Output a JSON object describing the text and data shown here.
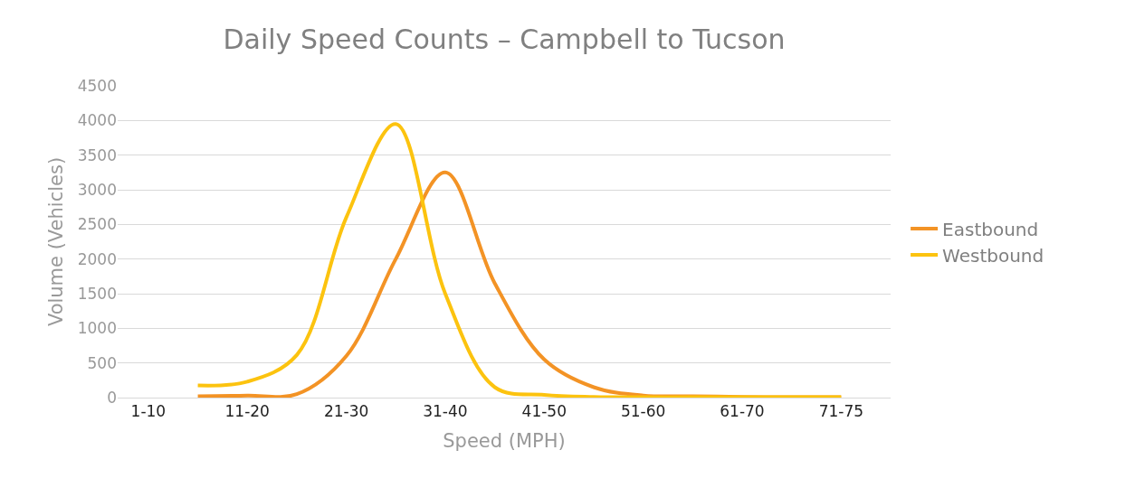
{
  "chart_data": {
    "type": "line",
    "title": "Daily Speed Counts – Campbell to Tucson",
    "xlabel": "Speed (MPH)",
    "ylabel": "Volume (Vehicles)",
    "categories": [
      "1-10",
      null,
      "11-20",
      null,
      "21-30",
      null,
      "31-40",
      null,
      "41-50",
      null,
      "51-60",
      null,
      "61-70",
      null,
      "71-75"
    ],
    "series": [
      {
        "name": "Eastbound",
        "color": "#f39325",
        "values": [
          null,
          20,
          30,
          50,
          600,
          2000,
          3250,
          1650,
          550,
          150,
          30,
          20,
          10,
          5,
          5
        ]
      },
      {
        "name": "Westbound",
        "color": "#fcc30f",
        "values": [
          null,
          175,
          230,
          615,
          2600,
          3950,
          1500,
          150,
          40,
          10,
          5,
          5,
          5,
          5,
          5
        ]
      }
    ],
    "ylim": [
      0,
      4500
    ],
    "yticks": [
      0,
      500,
      1000,
      1500,
      2000,
      2500,
      3000,
      3500,
      4000,
      4500
    ],
    "grid": "y",
    "legend": "right",
    "marker": "none",
    "line_style": "solid"
  }
}
